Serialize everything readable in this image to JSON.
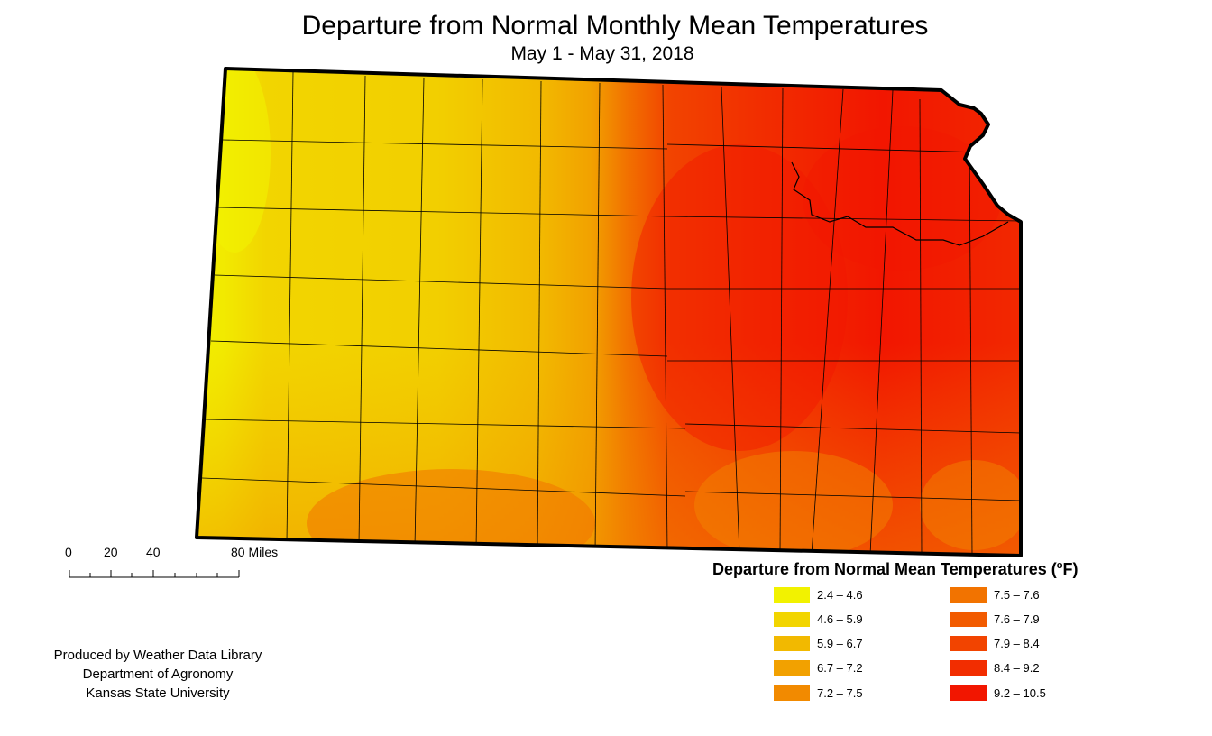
{
  "title": "Departure from Normal Monthly Mean Temperatures",
  "subtitle": "May 1 - May 31, 2018",
  "scale_bar": {
    "ticks": [
      "0",
      "20",
      "40",
      "80 Miles"
    ]
  },
  "credits": {
    "line1": "Produced by Weather Data Library",
    "line2": "Department of Agronomy",
    "line3": "Kansas State University"
  },
  "legend": {
    "title": "Departure from Normal Mean Temperatures (",
    "unit_sup": "o",
    "unit_tail": "F)",
    "items": [
      {
        "label": "2.4 – 4.6",
        "color": "#f2f200"
      },
      {
        "label": "4.6 – 5.9",
        "color": "#f2d500"
      },
      {
        "label": "5.9 – 6.7",
        "color": "#f2b900"
      },
      {
        "label": "6.7 – 7.2",
        "color": "#f2a100"
      },
      {
        "label": "7.2 – 7.5",
        "color": "#f28a00"
      },
      {
        "label": "7.5 – 7.6",
        "color": "#f27300"
      },
      {
        "label": "7.6 – 7.9",
        "color": "#f25b00"
      },
      {
        "label": "7.9 – 8.4",
        "color": "#f24400"
      },
      {
        "label": "8.4 – 9.2",
        "color": "#f22d00"
      },
      {
        "label": "9.2 – 10.5",
        "color": "#f21600"
      }
    ]
  }
}
